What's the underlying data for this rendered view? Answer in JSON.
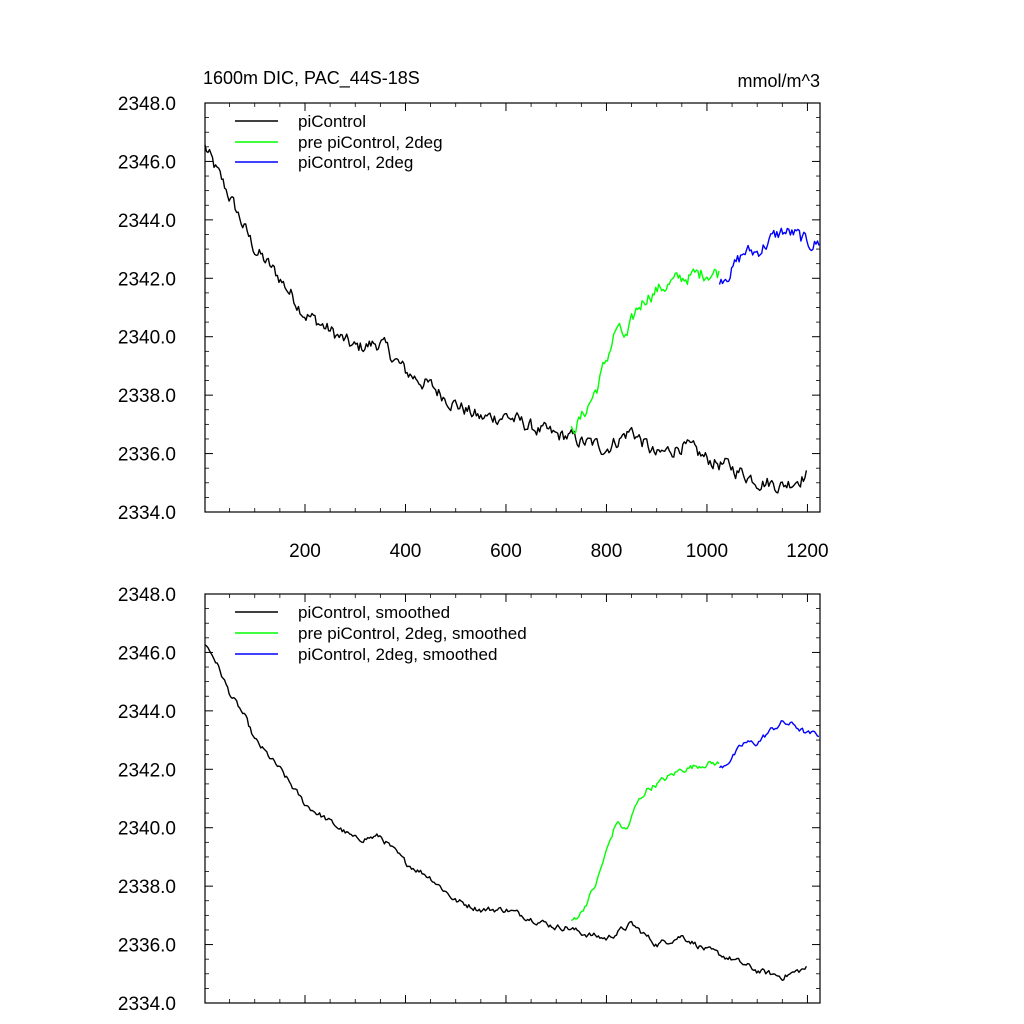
{
  "figure": {
    "title": "1600m DIC, PAC_44S-18S",
    "units": "mmol/m^3"
  },
  "colors": {
    "piControl": "#000000",
    "prePiControl2deg": "#00ff00",
    "piControl2deg": "#0000ff"
  },
  "chart_data": [
    {
      "type": "line",
      "panel": "top",
      "xlim": [
        1,
        1225
      ],
      "ylim": [
        2334.0,
        2348.0
      ],
      "xticks": [
        200,
        400,
        600,
        800,
        1000,
        1200
      ],
      "xtick_labels": [
        "200",
        "400",
        "600",
        "800",
        "1000",
        "1200"
      ],
      "yticks": [
        2334,
        2336,
        2338,
        2340,
        2342,
        2344,
        2346,
        2348
      ],
      "ytick_labels": [
        "2334.0",
        "2336.0",
        "2338.0",
        "2340.0",
        "2342.0",
        "2344.0",
        "2346.0",
        "2348.0"
      ],
      "legend": [
        "piControl",
        "pre piControl, 2deg",
        "piControl, 2deg"
      ],
      "legend_position": "top-left",
      "noise": 0.22,
      "series": [
        {
          "name": "piControl",
          "color_key": "piControl",
          "x": [
            1,
            20,
            50,
            80,
            100,
            150,
            200,
            250,
            300,
            350,
            400,
            450,
            500,
            550,
            600,
            650,
            700,
            720,
            750,
            800,
            850,
            900,
            950,
            1000,
            1050,
            1100,
            1150,
            1200
          ],
          "y": [
            2346.5,
            2345.8,
            2344.8,
            2343.7,
            2343.0,
            2342.0,
            2340.8,
            2340.2,
            2339.6,
            2339.8,
            2338.8,
            2338.3,
            2337.7,
            2337.2,
            2337.3,
            2336.9,
            2336.6,
            2336.6,
            2336.4,
            2336.2,
            2336.8,
            2335.9,
            2336.3,
            2335.8,
            2335.5,
            2335.1,
            2334.9,
            2335.3
          ]
        },
        {
          "name": "pre piControl, 2deg",
          "color_key": "prePiControl2deg",
          "x": [
            730,
            750,
            780,
            800,
            820,
            840,
            860,
            880,
            900,
            950,
            1000,
            1025
          ],
          "y": [
            2336.8,
            2337.2,
            2338.2,
            2339.2,
            2340.3,
            2339.9,
            2340.9,
            2341.4,
            2341.6,
            2342.0,
            2342.2,
            2342.2
          ],
          "start_at": 730
        },
        {
          "name": "piControl, 2deg",
          "color_key": "piControl2deg",
          "x": [
            1025,
            1050,
            1075,
            1100,
            1125,
            1150,
            1175,
            1200,
            1225
          ],
          "y": [
            2342.0,
            2342.3,
            2342.9,
            2342.9,
            2343.3,
            2343.6,
            2343.5,
            2343.2,
            2343.2
          ]
        }
      ]
    },
    {
      "type": "line",
      "panel": "bottom",
      "xlim": [
        1,
        1225
      ],
      "ylim": [
        2334.0,
        2348.0
      ],
      "xticks": [
        200,
        400,
        600,
        800,
        1000,
        1200
      ],
      "xtick_labels": [],
      "yticks": [
        2334,
        2336,
        2338,
        2340,
        2342,
        2344,
        2346,
        2348
      ],
      "ytick_labels": [
        "2334.0",
        "2336.0",
        "2338.0",
        "2340.0",
        "2342.0",
        "2344.0",
        "2346.0",
        "2348.0"
      ],
      "legend": [
        "piControl, smoothed",
        "pre piControl, 2deg, smoothed",
        "piControl, 2deg, smoothed"
      ],
      "legend_position": "top-left",
      "noise": 0.09,
      "series": [
        {
          "name": "piControl, smoothed",
          "color_key": "piControl",
          "x": [
            1,
            20,
            50,
            80,
            100,
            150,
            200,
            250,
            300,
            350,
            400,
            450,
            500,
            550,
            600,
            650,
            700,
            720,
            750,
            800,
            850,
            900,
            950,
            1000,
            1050,
            1100,
            1150,
            1200
          ],
          "y": [
            2346.3,
            2345.8,
            2344.6,
            2343.8,
            2343.0,
            2342.0,
            2340.8,
            2340.2,
            2339.6,
            2339.7,
            2338.8,
            2338.3,
            2337.5,
            2337.2,
            2337.2,
            2336.9,
            2336.6,
            2336.6,
            2336.4,
            2336.2,
            2336.7,
            2336.0,
            2336.3,
            2335.8,
            2335.5,
            2335.1,
            2334.9,
            2335.2
          ]
        },
        {
          "name": "pre piControl, 2deg, smoothed",
          "color_key": "prePiControl2deg",
          "x": [
            730,
            750,
            780,
            800,
            820,
            840,
            860,
            880,
            900,
            950,
            1000,
            1025
          ],
          "y": [
            2336.8,
            2337.1,
            2338.1,
            2339.2,
            2340.2,
            2339.9,
            2340.8,
            2341.3,
            2341.5,
            2342.0,
            2342.2,
            2342.2
          ],
          "start_at": 730
        },
        {
          "name": "piControl, 2deg, smoothed",
          "color_key": "piControl2deg",
          "x": [
            1025,
            1050,
            1075,
            1100,
            1125,
            1150,
            1175,
            1200,
            1225
          ],
          "y": [
            2342.0,
            2342.4,
            2342.9,
            2342.9,
            2343.3,
            2343.6,
            2343.5,
            2343.2,
            2343.2
          ]
        }
      ]
    }
  ]
}
